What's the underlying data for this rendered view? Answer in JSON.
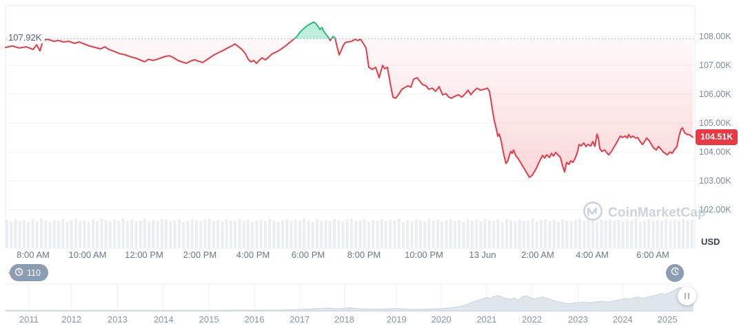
{
  "header": {
    "prev_close_label": "107.92K",
    "current_price_label": "104.51K",
    "currency_label": "USD"
  },
  "watermark_text": "CoinMarketCap",
  "history_badge_count": "110",
  "colors": {
    "up": "#2eb780",
    "down": "#ea3943",
    "up_fill": "rgba(22,199,132,0.28)",
    "down_fill_top": "rgba(234,57,67,0.03)",
    "down_fill_bottom": "rgba(234,57,67,0.22)",
    "grid": "#eef1f5",
    "border": "#e9edf1",
    "dotted": "#aeb6c3",
    "volume": "#e9eef3",
    "mini_fill": "#dfe5ed",
    "mini_stroke": "#cbd4df",
    "badge_gray": "#8c9db3",
    "watermark": "#cbd3e0"
  },
  "chart_data": {
    "type": "line",
    "title": "BTC price, last 24 hours (USD thousands)",
    "prev_close_k": 107.92,
    "current_price_k": 104.51,
    "y_axis": {
      "ticks": [
        "108.00K",
        "107.00K",
        "106.00K",
        "105.00K",
        "104.00K",
        "103.00K",
        "102.00K"
      ],
      "tick_values_k": [
        108,
        107,
        106,
        105,
        104,
        103,
        102
      ],
      "unit": "USD"
    },
    "x_axis": {
      "ticks": [
        {
          "label": "8:00 AM",
          "t": 0.04
        },
        {
          "label": "10:00 AM",
          "t": 0.119
        },
        {
          "label": "12:00 PM",
          "t": 0.201
        },
        {
          "label": "2:00 PM",
          "t": 0.282
        },
        {
          "label": "4:00 PM",
          "t": 0.359
        },
        {
          "label": "6:00 PM",
          "t": 0.439
        },
        {
          "label": "8:00 PM",
          "t": 0.52
        },
        {
          "label": "10:00 PM",
          "t": 0.607
        },
        {
          "label": "13 Jun",
          "t": 0.692
        },
        {
          "label": "2:00 AM",
          "t": 0.772
        },
        {
          "label": "4:00 AM",
          "t": 0.851
        },
        {
          "label": "6:00 AM",
          "t": 0.939
        }
      ]
    },
    "price_series_k": [
      [
        0.0,
        107.62
      ],
      [
        0.01,
        107.67
      ],
      [
        0.02,
        107.6
      ],
      [
        0.03,
        107.64
      ],
      [
        0.04,
        107.55
      ],
      [
        0.045,
        107.71
      ],
      [
        0.05,
        107.5
      ],
      [
        0.054,
        107.83
      ],
      [
        0.059,
        107.9
      ],
      [
        0.064,
        107.88
      ],
      [
        0.07,
        107.83
      ],
      [
        0.077,
        107.86
      ],
      [
        0.084,
        107.81
      ],
      [
        0.092,
        107.83
      ],
      [
        0.1,
        107.76
      ],
      [
        0.107,
        107.81
      ],
      [
        0.114,
        107.74
      ],
      [
        0.122,
        107.67
      ],
      [
        0.13,
        107.62
      ],
      [
        0.138,
        107.57
      ],
      [
        0.144,
        107.64
      ],
      [
        0.15,
        107.55
      ],
      [
        0.158,
        107.48
      ],
      [
        0.166,
        107.4
      ],
      [
        0.174,
        107.36
      ],
      [
        0.182,
        107.29
      ],
      [
        0.19,
        107.24
      ],
      [
        0.197,
        107.17
      ],
      [
        0.202,
        107.12
      ],
      [
        0.207,
        107.21
      ],
      [
        0.214,
        107.17
      ],
      [
        0.22,
        107.21
      ],
      [
        0.226,
        107.26
      ],
      [
        0.232,
        107.31
      ],
      [
        0.238,
        107.33
      ],
      [
        0.244,
        107.26
      ],
      [
        0.25,
        107.17
      ],
      [
        0.256,
        107.12
      ],
      [
        0.262,
        107.07
      ],
      [
        0.268,
        107.14
      ],
      [
        0.274,
        107.19
      ],
      [
        0.28,
        107.14
      ],
      [
        0.286,
        107.1
      ],
      [
        0.292,
        107.19
      ],
      [
        0.298,
        107.29
      ],
      [
        0.304,
        107.38
      ],
      [
        0.31,
        107.45
      ],
      [
        0.316,
        107.52
      ],
      [
        0.322,
        107.6
      ],
      [
        0.328,
        107.67
      ],
      [
        0.333,
        107.74
      ],
      [
        0.338,
        107.64
      ],
      [
        0.343,
        107.55
      ],
      [
        0.348,
        107.4
      ],
      [
        0.352,
        107.21
      ],
      [
        0.356,
        107.12
      ],
      [
        0.36,
        107.17
      ],
      [
        0.364,
        107.07
      ],
      [
        0.368,
        107.17
      ],
      [
        0.372,
        107.26
      ],
      [
        0.377,
        107.19
      ],
      [
        0.382,
        107.29
      ],
      [
        0.387,
        107.4
      ],
      [
        0.392,
        107.45
      ],
      [
        0.397,
        107.52
      ],
      [
        0.402,
        107.6
      ],
      [
        0.407,
        107.69
      ],
      [
        0.412,
        107.79
      ],
      [
        0.417,
        107.88
      ],
      [
        0.422,
        107.98
      ],
      [
        0.427,
        108.14
      ],
      [
        0.432,
        108.26
      ],
      [
        0.437,
        108.36
      ],
      [
        0.442,
        108.43
      ],
      [
        0.447,
        108.5
      ],
      [
        0.45,
        108.45
      ],
      [
        0.453,
        108.36
      ],
      [
        0.456,
        108.24
      ],
      [
        0.459,
        108.31
      ],
      [
        0.462,
        108.17
      ],
      [
        0.465,
        108.07
      ],
      [
        0.468,
        107.98
      ],
      [
        0.471,
        107.86
      ],
      [
        0.475,
        108.0
      ],
      [
        0.478,
        107.95
      ],
      [
        0.481,
        107.64
      ],
      [
        0.484,
        107.36
      ],
      [
        0.487,
        107.52
      ],
      [
        0.49,
        107.69
      ],
      [
        0.493,
        107.79
      ],
      [
        0.497,
        107.81
      ],
      [
        0.502,
        107.83
      ],
      [
        0.507,
        107.9
      ],
      [
        0.511,
        107.86
      ],
      [
        0.515,
        107.9
      ],
      [
        0.519,
        107.76
      ],
      [
        0.523,
        107.6
      ],
      [
        0.527,
        106.93
      ],
      [
        0.532,
        106.86
      ],
      [
        0.537,
        106.93
      ],
      [
        0.542,
        106.57
      ],
      [
        0.547,
        107.0
      ],
      [
        0.55,
        106.88
      ],
      [
        0.554,
        106.93
      ],
      [
        0.559,
        106.26
      ],
      [
        0.562,
        105.9
      ],
      [
        0.566,
        105.86
      ],
      [
        0.57,
        105.98
      ],
      [
        0.575,
        106.17
      ],
      [
        0.58,
        106.24
      ],
      [
        0.584,
        106.29
      ],
      [
        0.588,
        106.24
      ],
      [
        0.592,
        106.52
      ],
      [
        0.597,
        106.57
      ],
      [
        0.601,
        106.45
      ],
      [
        0.605,
        106.33
      ],
      [
        0.61,
        106.29
      ],
      [
        0.614,
        106.17
      ],
      [
        0.619,
        106.21
      ],
      [
        0.624,
        106.1
      ],
      [
        0.629,
        106.26
      ],
      [
        0.634,
        105.98
      ],
      [
        0.639,
        106.02
      ],
      [
        0.643,
        105.9
      ],
      [
        0.647,
        105.86
      ],
      [
        0.652,
        105.93
      ],
      [
        0.657,
        105.98
      ],
      [
        0.662,
        105.9
      ],
      [
        0.667,
        106.02
      ],
      [
        0.671,
        106.14
      ],
      [
        0.675,
        105.98
      ],
      [
        0.679,
        106.1
      ],
      [
        0.684,
        106.21
      ],
      [
        0.689,
        106.14
      ],
      [
        0.694,
        106.17
      ],
      [
        0.699,
        106.21
      ],
      [
        0.702,
        106.1
      ],
      [
        0.704,
        105.81
      ],
      [
        0.706,
        105.5
      ],
      [
        0.708,
        105.21
      ],
      [
        0.71,
        104.98
      ],
      [
        0.712,
        104.79
      ],
      [
        0.714,
        104.55
      ],
      [
        0.716,
        104.62
      ],
      [
        0.718,
        104.48
      ],
      [
        0.72,
        104.26
      ],
      [
        0.722,
        104.0
      ],
      [
        0.724,
        103.79
      ],
      [
        0.726,
        103.6
      ],
      [
        0.729,
        103.71
      ],
      [
        0.731,
        103.9
      ],
      [
        0.733,
        104.02
      ],
      [
        0.735,
        103.95
      ],
      [
        0.737,
        104.07
      ],
      [
        0.74,
        103.88
      ],
      [
        0.744,
        103.76
      ],
      [
        0.747,
        103.64
      ],
      [
        0.75,
        103.52
      ],
      [
        0.754,
        103.36
      ],
      [
        0.757,
        103.24
      ],
      [
        0.76,
        103.12
      ],
      [
        0.764,
        103.19
      ],
      [
        0.767,
        103.31
      ],
      [
        0.77,
        103.43
      ],
      [
        0.773,
        103.6
      ],
      [
        0.776,
        103.74
      ],
      [
        0.779,
        103.88
      ],
      [
        0.782,
        103.79
      ],
      [
        0.785,
        103.9
      ],
      [
        0.789,
        103.81
      ],
      [
        0.792,
        103.95
      ],
      [
        0.795,
        103.86
      ],
      [
        0.798,
        103.98
      ],
      [
        0.802,
        103.88
      ],
      [
        0.805,
        103.81
      ],
      [
        0.808,
        103.52
      ],
      [
        0.811,
        103.31
      ],
      [
        0.814,
        103.64
      ],
      [
        0.817,
        103.57
      ],
      [
        0.82,
        103.69
      ],
      [
        0.823,
        103.64
      ],
      [
        0.826,
        103.76
      ],
      [
        0.83,
        104.02
      ],
      [
        0.832,
        104.26
      ],
      [
        0.835,
        104.21
      ],
      [
        0.839,
        104.31
      ],
      [
        0.842,
        104.19
      ],
      [
        0.845,
        104.26
      ],
      [
        0.849,
        104.21
      ],
      [
        0.852,
        104.36
      ],
      [
        0.855,
        104.19
      ],
      [
        0.858,
        104.62
      ],
      [
        0.86,
        104.48
      ],
      [
        0.862,
        104.12
      ],
      [
        0.865,
        104.02
      ],
      [
        0.869,
        104.07
      ],
      [
        0.872,
        103.98
      ],
      [
        0.875,
        103.9
      ],
      [
        0.879,
        104.02
      ],
      [
        0.882,
        104.14
      ],
      [
        0.885,
        104.26
      ],
      [
        0.889,
        104.43
      ],
      [
        0.892,
        104.55
      ],
      [
        0.895,
        104.5
      ],
      [
        0.899,
        104.55
      ],
      [
        0.902,
        104.48
      ],
      [
        0.904,
        104.6
      ],
      [
        0.907,
        104.5
      ],
      [
        0.91,
        104.55
      ],
      [
        0.914,
        104.48
      ],
      [
        0.917,
        104.5
      ],
      [
        0.92,
        104.38
      ],
      [
        0.924,
        104.26
      ],
      [
        0.927,
        104.36
      ],
      [
        0.93,
        104.48
      ],
      [
        0.934,
        104.38
      ],
      [
        0.937,
        104.26
      ],
      [
        0.94,
        104.14
      ],
      [
        0.944,
        104.07
      ],
      [
        0.947,
        104.19
      ],
      [
        0.95,
        104.12
      ],
      [
        0.954,
        104.0
      ],
      [
        0.957,
        103.95
      ],
      [
        0.96,
        103.9
      ],
      [
        0.964,
        104.0
      ],
      [
        0.967,
        103.95
      ],
      [
        0.97,
        104.07
      ],
      [
        0.974,
        104.19
      ],
      [
        0.977,
        104.55
      ],
      [
        0.98,
        104.79
      ],
      [
        0.982,
        104.83
      ],
      [
        0.985,
        104.67
      ],
      [
        0.989,
        104.6
      ],
      [
        0.992,
        104.6
      ],
      [
        0.997,
        104.51
      ]
    ],
    "volume_rel": [
      0.92,
      0.86,
      0.95,
      0.88,
      0.9,
      0.84,
      0.93,
      0.87,
      0.96,
      0.9,
      0.85,
      0.92,
      0.88,
      0.94,
      0.86,
      0.9,
      0.95,
      0.87,
      0.91,
      0.85,
      0.93,
      0.89,
      0.96,
      0.9,
      0.86,
      0.92,
      0.88,
      0.95,
      0.89,
      0.93,
      0.87,
      0.9,
      0.94,
      0.86,
      0.91,
      0.88,
      0.95,
      0.92,
      0.87,
      0.9,
      0.93,
      0.85,
      0.89,
      0.94,
      0.9,
      0.87,
      0.92,
      0.96,
      0.88,
      0.91,
      0.86,
      0.93,
      0.9,
      0.87,
      0.94,
      0.89,
      0.92,
      0.85,
      0.9,
      0.93,
      0.88,
      0.95,
      0.9,
      0.86,
      0.91,
      0.94,
      0.87,
      0.92,
      0.89,
      0.96,
      0.9,
      0.85,
      0.93,
      0.88,
      0.91,
      0.87,
      0.94,
      0.9,
      0.86,
      0.92,
      0.95,
      0.88,
      0.9,
      0.93,
      0.86,
      0.91,
      0.89,
      0.94,
      0.87,
      0.92,
      0.9,
      0.96,
      0.85,
      0.91,
      0.88,
      0.93,
      0.9,
      0.87,
      0.95,
      0.89,
      0.92,
      0.86,
      0.9,
      0.94,
      0.88,
      0.91,
      0.85,
      0.93,
      0.89,
      0.92,
      0.87,
      0.95,
      0.9,
      0.88,
      0.92,
      0.86,
      0.94,
      0.9,
      0.87,
      0.93,
      0.89,
      0.91,
      0.96,
      0.86,
      0.9,
      0.93,
      0.88,
      0.92,
      0.85,
      0.94,
      0.9,
      0.87,
      0.91,
      0.95,
      0.88,
      0.92,
      0.89,
      0.86,
      0.93,
      0.9,
      0.94,
      0.88,
      0.91,
      0.87,
      0.92,
      0.9,
      0.95,
      0.86,
      0.89,
      0.93,
      0.9,
      0.92,
      0.87,
      0.94,
      0.89,
      0.91,
      0.88,
      0.93,
      0.9,
      0.92
    ],
    "mini_timeline": {
      "years": [
        {
          "label": "2011",
          "t": 0.034
        },
        {
          "label": "2012",
          "t": 0.096
        },
        {
          "label": "2013",
          "t": 0.163
        },
        {
          "label": "2014",
          "t": 0.23
        },
        {
          "label": "2015",
          "t": 0.296
        },
        {
          "label": "2016",
          "t": 0.362
        },
        {
          "label": "2017",
          "t": 0.428
        },
        {
          "label": "2018",
          "t": 0.493
        },
        {
          "label": "2019",
          "t": 0.569
        },
        {
          "label": "2020",
          "t": 0.634
        },
        {
          "label": "2021",
          "t": 0.7
        },
        {
          "label": "2022",
          "t": 0.766
        },
        {
          "label": "2023",
          "t": 0.833
        },
        {
          "label": "2024",
          "t": 0.898
        },
        {
          "label": "2025",
          "t": 0.963
        }
      ],
      "area_rel": [
        [
          0.0,
          0.02
        ],
        [
          0.08,
          0.02
        ],
        [
          0.16,
          0.02
        ],
        [
          0.24,
          0.02
        ],
        [
          0.3,
          0.02
        ],
        [
          0.36,
          0.03
        ],
        [
          0.4,
          0.03
        ],
        [
          0.43,
          0.06
        ],
        [
          0.45,
          0.09
        ],
        [
          0.47,
          0.12
        ],
        [
          0.485,
          0.09
        ],
        [
          0.5,
          0.13
        ],
        [
          0.515,
          0.09
        ],
        [
          0.53,
          0.07
        ],
        [
          0.55,
          0.08
        ],
        [
          0.57,
          0.1
        ],
        [
          0.585,
          0.07
        ],
        [
          0.6,
          0.06
        ],
        [
          0.62,
          0.08
        ],
        [
          0.635,
          0.1
        ],
        [
          0.65,
          0.13
        ],
        [
          0.66,
          0.18
        ],
        [
          0.67,
          0.26
        ],
        [
          0.68,
          0.38
        ],
        [
          0.688,
          0.46
        ],
        [
          0.695,
          0.52
        ],
        [
          0.7,
          0.58
        ],
        [
          0.705,
          0.52
        ],
        [
          0.71,
          0.6
        ],
        [
          0.716,
          0.65
        ],
        [
          0.722,
          0.6
        ],
        [
          0.728,
          0.53
        ],
        [
          0.734,
          0.49
        ],
        [
          0.74,
          0.55
        ],
        [
          0.746,
          0.46
        ],
        [
          0.752,
          0.6
        ],
        [
          0.758,
          0.64
        ],
        [
          0.764,
          0.56
        ],
        [
          0.77,
          0.51
        ],
        [
          0.776,
          0.56
        ],
        [
          0.782,
          0.59
        ],
        [
          0.788,
          0.53
        ],
        [
          0.794,
          0.48
        ],
        [
          0.8,
          0.42
        ],
        [
          0.81,
          0.35
        ],
        [
          0.82,
          0.31
        ],
        [
          0.83,
          0.35
        ],
        [
          0.84,
          0.37
        ],
        [
          0.85,
          0.34
        ],
        [
          0.86,
          0.39
        ],
        [
          0.87,
          0.41
        ],
        [
          0.878,
          0.37
        ],
        [
          0.886,
          0.43
        ],
        [
          0.894,
          0.47
        ],
        [
          0.902,
          0.53
        ],
        [
          0.908,
          0.49
        ],
        [
          0.914,
          0.56
        ],
        [
          0.92,
          0.59
        ],
        [
          0.926,
          0.53
        ],
        [
          0.932,
          0.57
        ],
        [
          0.94,
          0.63
        ],
        [
          0.948,
          0.68
        ],
        [
          0.954,
          0.74
        ],
        [
          0.96,
          0.7
        ],
        [
          0.966,
          0.78
        ],
        [
          0.972,
          0.86
        ],
        [
          0.978,
          0.97
        ],
        [
          0.983,
          1.0
        ],
        [
          0.988,
          0.9
        ],
        [
          0.994,
          0.84
        ],
        [
          1.0,
          0.87
        ]
      ]
    }
  }
}
